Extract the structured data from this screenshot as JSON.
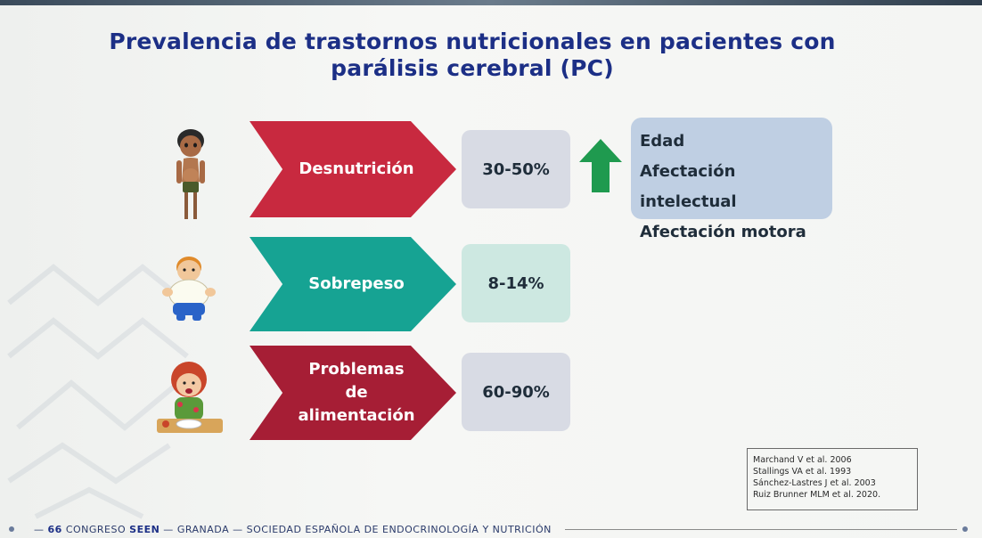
{
  "title_line1": "Prevalencia de trastornos nutricionales en pacientes con",
  "title_line2": "parálisis cerebral (PC)",
  "rows": [
    {
      "label": "Desnutrición",
      "percent": "30-50%",
      "arrow_color": "#c8293f",
      "box_color": "#d8dbe4"
    },
    {
      "label": "Sobrepeso",
      "percent": "8-14%",
      "arrow_color": "#16a393",
      "box_color": "#cde8e1"
    },
    {
      "label_lines": [
        "Problemas",
        "de",
        "alimentación"
      ],
      "percent": "60-90%",
      "arrow_color": "#a61e35",
      "box_color": "#d8dbe4"
    }
  ],
  "risk_factors": [
    "Edad",
    "Afectación intelectual",
    "Afectación motora"
  ],
  "up_arrow_color": "#1f9a4f",
  "references": [
    "Marchand V et al. 2006",
    "Stallings VA et al. 1993",
    "Sánchez-Lastres J et al. 2003",
    "Ruiz Brunner MLM et al. 2020."
  ],
  "footer": {
    "number": "66",
    "congreso": "CONGRESO",
    "seen": "SEEN",
    "sep1": " — ",
    "city": "GRANADA",
    "sep2": " — ",
    "society": "SOCIEDAD ESPAÑOLA DE ENDOCRINOLOGÍA Y NUTRICIÓN"
  }
}
